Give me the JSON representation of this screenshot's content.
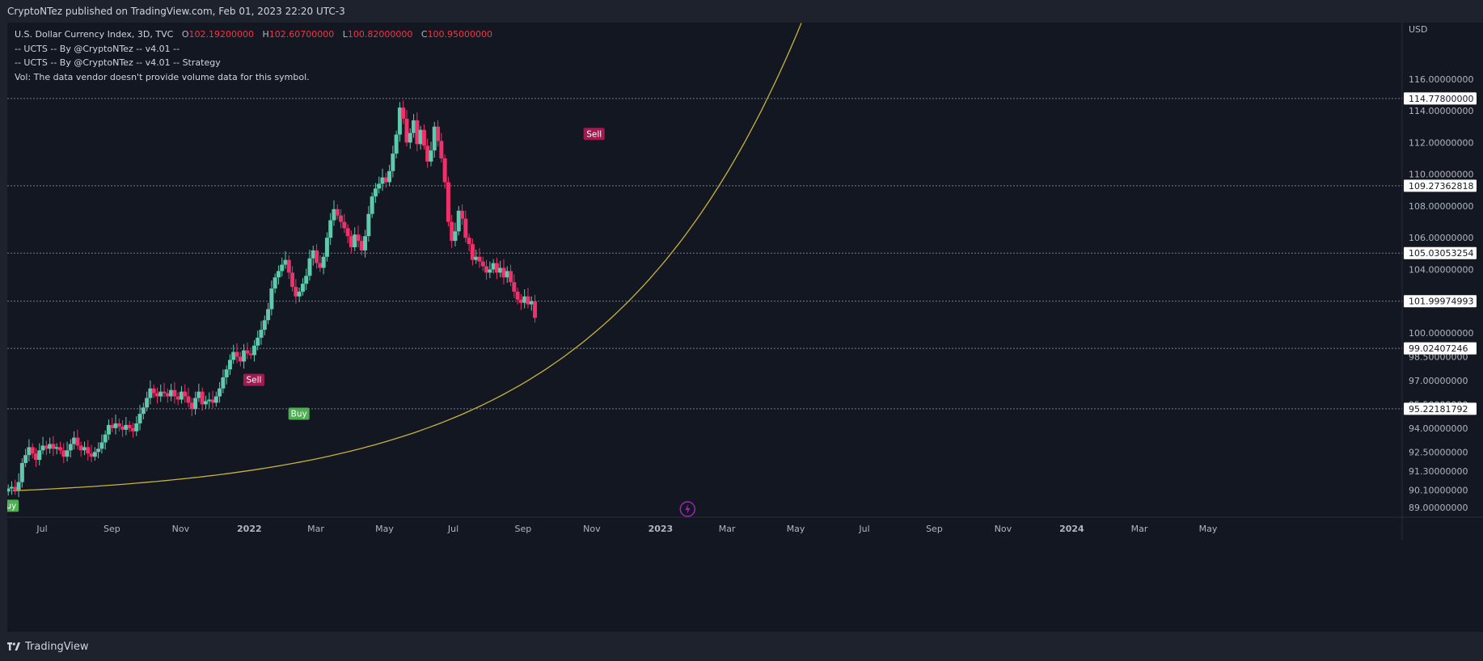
{
  "header": {
    "published": "CryptoNTez published on TradingView.com, Feb 01, 2023 22:20 UTC-3"
  },
  "legend": {
    "symbol": "U.S. Dollar Currency Index, 3D, TVC",
    "open_label": "O",
    "open": "102.19200000",
    "high_label": "H",
    "high": "102.60700000",
    "low_label": "L",
    "low": "100.82000000",
    "close_label": "C",
    "close": "100.95000000",
    "indicator1": "-- UCTS -- By @CryptoNTez -- v4.01 --",
    "indicator2": "-- UCTS -- By @CryptoNTez -- v4.01 -- Strategy",
    "volume": "Vol: The data vendor doesn't provide volume data for this symbol."
  },
  "footer": {
    "brand": "TradingView"
  },
  "colors": {
    "up": "#5fc9ad",
    "down": "#f0306a",
    "curve": "#c9b23a",
    "buy": "#4caf50",
    "sell": "#a31a52",
    "bg": "#131722"
  },
  "chart_data": {
    "type": "candlestick",
    "currency": "USD",
    "y_ticks": [
      "116.00000000",
      "114.00000000",
      "112.00000000",
      "110.00000000",
      "108.00000000",
      "106.00000000",
      "104.00000000",
      "100.00000000",
      "98.50000000",
      "97.00000000",
      "95.50000000",
      "94.00000000",
      "92.50000000",
      "91.30000000",
      "90.10000000",
      "89.00000000"
    ],
    "x_ticks": [
      "Jul",
      "Sep",
      "Nov",
      "2022",
      "Mar",
      "May",
      "Jul",
      "Sep",
      "Nov",
      "2023",
      "Mar",
      "May",
      "Jul",
      "Sep",
      "Nov",
      "2024",
      "Mar",
      "May"
    ],
    "levels": [
      "114.77800000",
      "109.27362818",
      "105.03053254",
      "101.99974993",
      "99.02407246",
      "95.22181792"
    ],
    "signals": [
      {
        "label": "Buy",
        "date": "2021-06-01",
        "price": 90.0
      },
      {
        "label": "Sell",
        "date": "2022-01-05",
        "price": 96.3
      },
      {
        "label": "Buy",
        "date": "2022-02-14",
        "price": 95.8
      },
      {
        "label": "Sell",
        "date": "2022-11-03",
        "price": 111.8
      }
    ],
    "closes": [
      90.2,
      90.3,
      90.1,
      90.6,
      91.8,
      92.3,
      92.8,
      92.4,
      92.0,
      92.6,
      92.9,
      92.7,
      93.0,
      92.7,
      92.8,
      92.6,
      92.2,
      92.6,
      93.0,
      93.4,
      92.9,
      92.6,
      92.8,
      92.4,
      92.2,
      92.5,
      92.7,
      93.1,
      93.6,
      94.2,
      94.0,
      94.3,
      94.1,
      93.9,
      94.2,
      94.0,
      93.8,
      94.3,
      94.9,
      95.3,
      95.9,
      96.5,
      96.2,
      96.0,
      96.3,
      96.2,
      96.0,
      96.4,
      96.0,
      95.8,
      96.3,
      96.0,
      95.6,
      95.2,
      95.9,
      96.3,
      95.5,
      95.7,
      95.8,
      95.6,
      96.0,
      96.5,
      97.2,
      97.7,
      98.3,
      98.8,
      98.5,
      98.2,
      98.9,
      98.7,
      98.6,
      99.2,
      99.7,
      100.2,
      100.8,
      101.5,
      102.8,
      103.5,
      103.9,
      104.3,
      104.6,
      103.8,
      102.9,
      102.3,
      102.6,
      103.1,
      103.6,
      104.7,
      105.2,
      104.4,
      104.1,
      104.8,
      106.0,
      107.1,
      107.8,
      107.4,
      107.0,
      106.6,
      106.1,
      105.4,
      106.2,
      105.8,
      105.2,
      106.1,
      107.5,
      108.6,
      109.1,
      109.4,
      109.8,
      109.5,
      110.2,
      111.3,
      112.5,
      114.2,
      113.5,
      112.0,
      112.6,
      113.4,
      111.9,
      112.8,
      111.8,
      110.8,
      111.5,
      113.0,
      112.1,
      111.0,
      109.5,
      107.0,
      105.8,
      106.4,
      107.7,
      107.2,
      106.0,
      105.6,
      104.6,
      104.8,
      104.5,
      104.2,
      103.8,
      104.0,
      104.4,
      103.8,
      104.1,
      103.5,
      103.9,
      103.2,
      102.6,
      102.1,
      101.9,
      102.3,
      101.8,
      102.0,
      100.95
    ]
  }
}
